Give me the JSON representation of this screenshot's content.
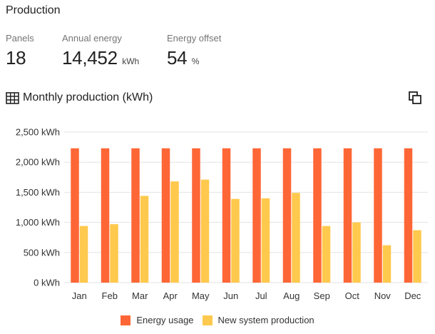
{
  "section_title": "Production",
  "stats": {
    "panels": {
      "label": "Panels",
      "value": "18"
    },
    "annual_energy": {
      "label": "Annual energy",
      "value": "14,452",
      "unit": "kWh"
    },
    "energy_offset": {
      "label": "Energy offset",
      "value": "54",
      "unit": "%"
    }
  },
  "chart_header": {
    "title": "Monthly production (kWh)",
    "table_icon": "table-grid-icon",
    "copy_icon": "copy-icon"
  },
  "colors": {
    "energy_usage": "#FF6636",
    "new_system_production": "#FFC94D",
    "grid": "#E3E3E3",
    "axis_text": "#333333"
  },
  "chart_data": {
    "type": "bar",
    "title": "Monthly production (kWh)",
    "categories": [
      "Jan",
      "Feb",
      "Mar",
      "Apr",
      "May",
      "Jun",
      "Jul",
      "Aug",
      "Sep",
      "Oct",
      "Nov",
      "Dec"
    ],
    "series": [
      {
        "name": "Energy usage",
        "values": [
          2230,
          2230,
          2230,
          2230,
          2230,
          2230,
          2230,
          2230,
          2230,
          2230,
          2230,
          2230
        ]
      },
      {
        "name": "New system production",
        "values": [
          940,
          970,
          1440,
          1680,
          1710,
          1390,
          1400,
          1490,
          940,
          1000,
          620,
          870
        ]
      }
    ],
    "ylim": [
      0,
      2500
    ],
    "yticks": [
      0,
      500,
      1000,
      1500,
      2000,
      2500
    ],
    "ytick_labels": [
      "0 kWh",
      "500 kWh",
      "1,000 kWh",
      "1,500 kWh",
      "2,000 kWh",
      "2,500 kWh"
    ],
    "xlabel": "",
    "ylabel": "",
    "grid": true,
    "legend_position": "bottom"
  }
}
